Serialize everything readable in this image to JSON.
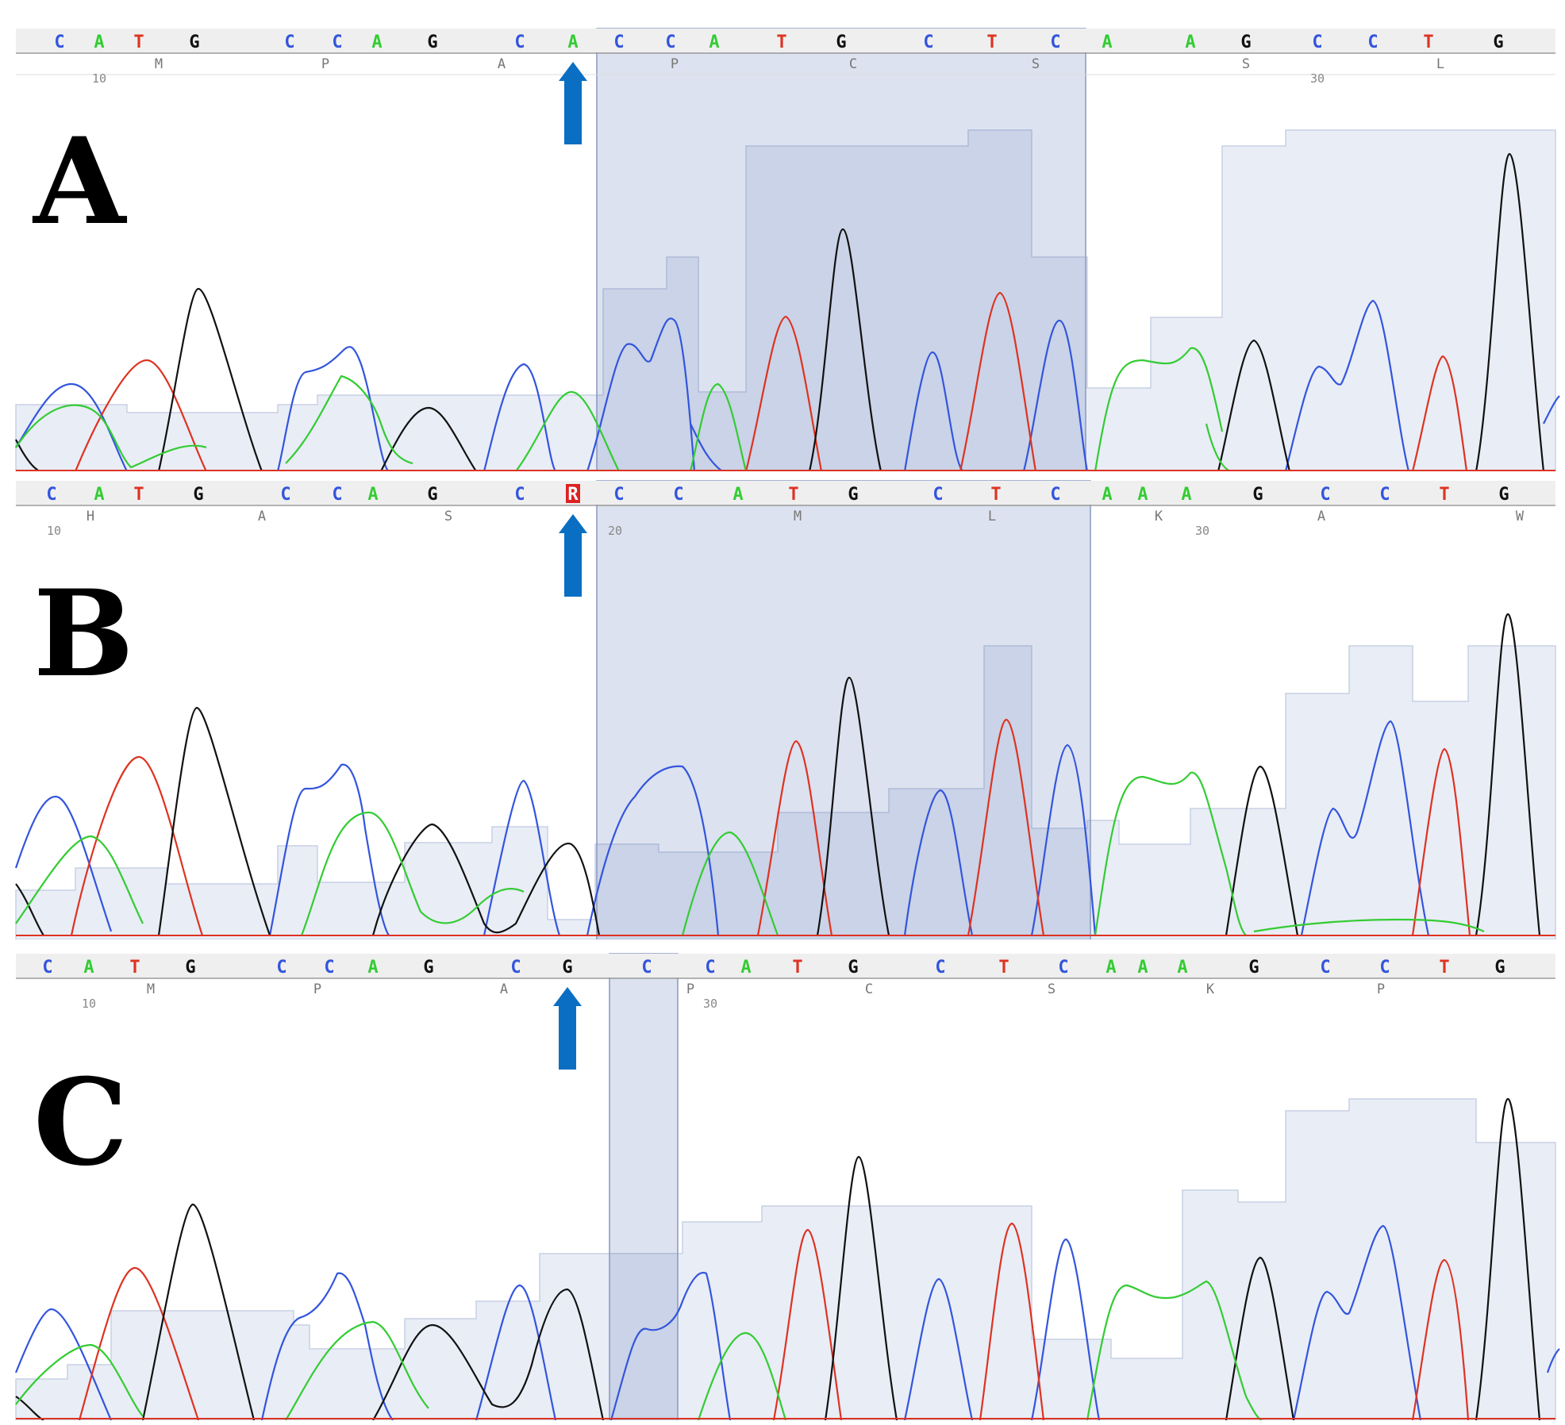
{
  "colors": {
    "A": "#33cc33",
    "C": "#3355dd",
    "G": "#111111",
    "T": "#dd3322",
    "R": "#ffffff",
    "arrow": "#0a6fc2",
    "highlight": "#3d5da8",
    "quality": "#e9edf6"
  },
  "panels": [
    {
      "id": "A",
      "label": "A",
      "bases": [
        "C",
        "A",
        "T",
        "G",
        "C",
        "C",
        "A",
        "G",
        "C",
        "A",
        "C",
        "C",
        "A",
        "T",
        "G",
        "C",
        "T",
        "C",
        "A",
        "A",
        "G",
        "C",
        "C",
        "T",
        "G"
      ],
      "aa": [
        "M",
        "P",
        "A",
        "P",
        "C",
        "S",
        "S",
        "L"
      ],
      "positions": [
        "10",
        "30"
      ],
      "highlight_range": [
        10,
        17
      ],
      "arrow_index": 9
    },
    {
      "id": "B",
      "label": "B",
      "bases": [
        "C",
        "A",
        "T",
        "G",
        "C",
        "C",
        "A",
        "G",
        "C",
        "R",
        "C",
        "C",
        "A",
        "T",
        "G",
        "C",
        "T",
        "C",
        "A",
        "A",
        "A",
        "G",
        "C",
        "C",
        "T",
        "G"
      ],
      "aa": [
        "H",
        "A",
        "S",
        "M",
        "L",
        "K",
        "A",
        "W"
      ],
      "positions": [
        "10",
        "20",
        "30"
      ],
      "highlight_range": [
        10,
        17
      ],
      "arrow_index": 9
    },
    {
      "id": "C",
      "label": "C",
      "bases": [
        "C",
        "A",
        "T",
        "G",
        "C",
        "C",
        "A",
        "G",
        "C",
        "G",
        "C",
        "C",
        "A",
        "T",
        "G",
        "C",
        "T",
        "C",
        "A",
        "A",
        "A",
        "G",
        "C",
        "C",
        "T",
        "G"
      ],
      "aa": [
        "M",
        "P",
        "A",
        "P",
        "C",
        "S",
        "K",
        "P"
      ],
      "positions": [
        "10",
        "30"
      ],
      "highlight_range": [
        10,
        10
      ],
      "arrow_index": 9
    }
  ]
}
